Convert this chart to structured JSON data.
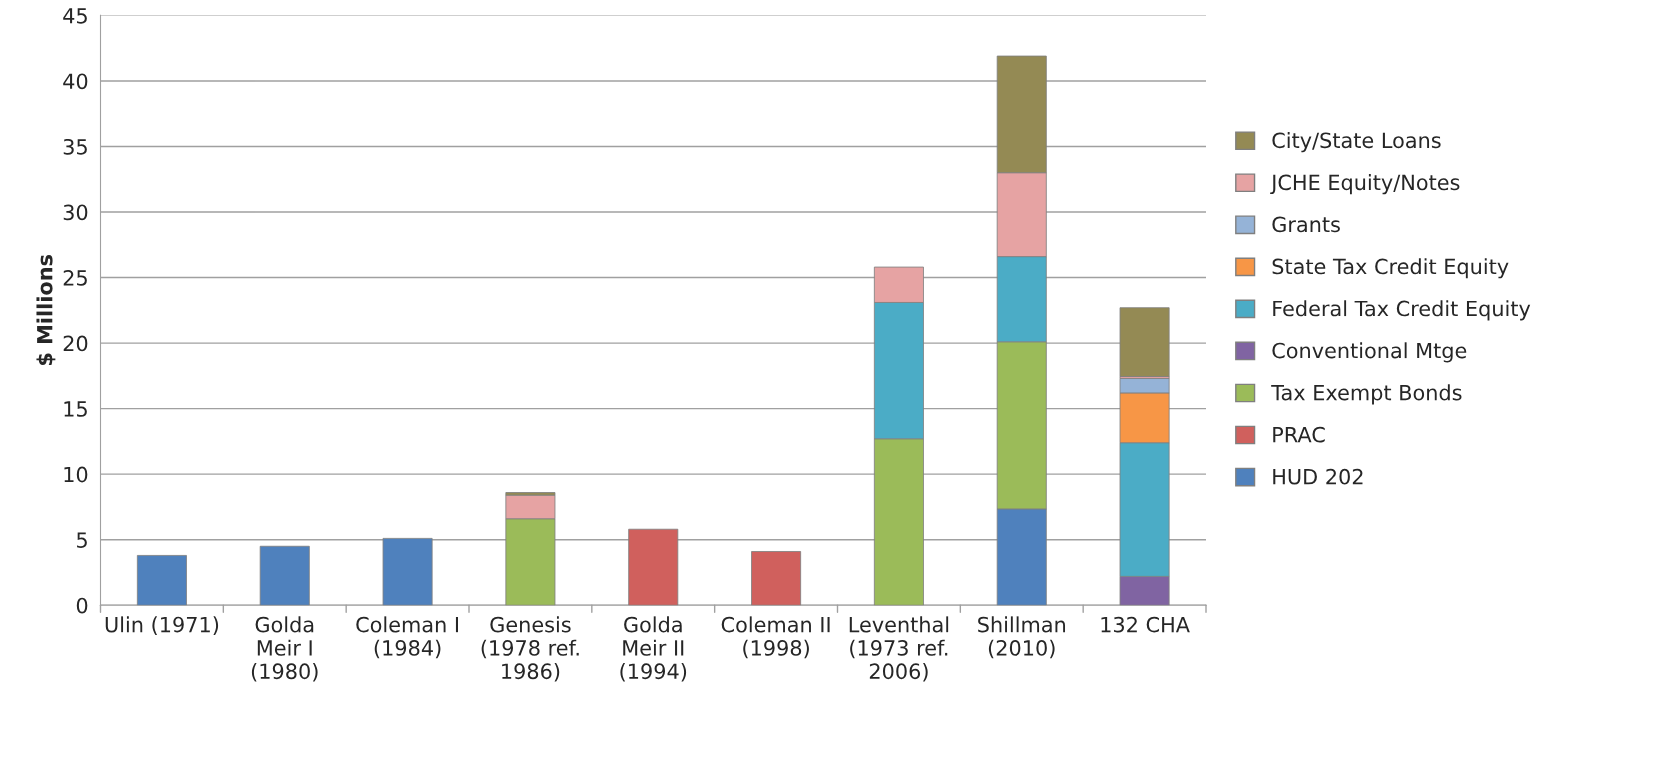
{
  "chart_data": {
    "type": "bar",
    "stacked": true,
    "ylabel": "$ Millions",
    "categories": [
      "Ulin (1971)",
      "Golda\nMeir I\n(1980)",
      "Coleman I\n(1984)",
      "Genesis\n(1978 ref.\n1986)",
      "Golda\nMeir II\n(1994)",
      "Coleman II\n(1998)",
      "Leventhal\n(1973 ref.\n2006)",
      "Shillman\n(2010)",
      "132 CHA"
    ],
    "series": [
      {
        "name": "HUD 202",
        "color": "#4f81bd",
        "values": [
          3.8,
          4.5,
          5.1,
          null,
          null,
          null,
          null,
          7.35,
          null
        ]
      },
      {
        "name": "PRAC",
        "color": "#d0605d",
        "values": [
          null,
          null,
          null,
          null,
          5.8,
          4.1,
          null,
          null,
          null
        ]
      },
      {
        "name": "Tax Exempt Bonds",
        "color": "#9bbb59",
        "values": [
          null,
          null,
          null,
          6.6,
          null,
          null,
          12.7,
          12.75,
          null
        ]
      },
      {
        "name": "Conventional Mtge",
        "color": "#8064a2",
        "values": [
          null,
          null,
          null,
          null,
          null,
          null,
          null,
          null,
          2.2
        ]
      },
      {
        "name": "Federal Tax Credit Equity",
        "color": "#4bacc6",
        "values": [
          null,
          null,
          null,
          null,
          null,
          null,
          10.4,
          6.5,
          10.2
        ]
      },
      {
        "name": "State Tax Credit Equity",
        "color": "#f79646",
        "values": [
          null,
          null,
          null,
          null,
          null,
          null,
          null,
          null,
          3.8
        ]
      },
      {
        "name": "Grants",
        "color": "#95b3d7",
        "values": [
          null,
          null,
          null,
          null,
          null,
          null,
          null,
          null,
          1.1
        ]
      },
      {
        "name": "JCHE Equity/Notes",
        "color": "#e6a3a3",
        "values": [
          null,
          null,
          null,
          1.8,
          null,
          null,
          2.7,
          6.4,
          0.15
        ]
      },
      {
        "name": "City/State Loans",
        "color": "#948a54",
        "values": [
          null,
          null,
          null,
          0.2,
          null,
          null,
          null,
          8.9,
          5.25
        ]
      }
    ],
    "ylim": [
      0,
      45
    ],
    "yticks": [
      0,
      5,
      10,
      15,
      20,
      25,
      30,
      35,
      40,
      45
    ],
    "grid": "y",
    "legend": "right"
  }
}
